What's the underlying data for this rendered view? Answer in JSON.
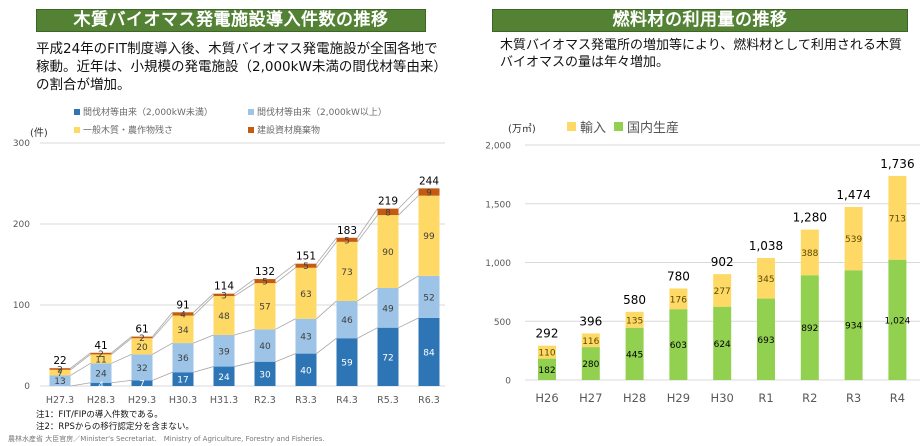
{
  "left": {
    "title": "木質バイオマス発電施設導入件数の推移",
    "description": "平成24年のFIT制度導入後、木質バイオマス発電施設が全国各地で稼動。近年は、小規模の発電施設（2,000kW未満の間伐材等由来）の割合が増加。",
    "unit": "(件)",
    "notes": [
      "注1：FIT/FIPの導入件数である。",
      "注2：RPSからの移行認定分を含まない。"
    ]
  },
  "right": {
    "title": "燃料材の利用量の推移",
    "description": "木質バイオマス発電所の増加等により、燃料材として利用される木質バイオマスの量は年々増加。",
    "unit": "(万㎥)"
  },
  "footer": "農林水産省 大臣官房／Minister's Secretariat.　Ministry of Agriculture, Forestry and Fisheries.",
  "chart_data": [
    {
      "type": "bar",
      "stacked": true,
      "title": "木質バイオマス発電施設導入件数の推移",
      "xlabel": "",
      "ylabel": "(件)",
      "ylim": [
        0,
        300
      ],
      "yticks": [
        0,
        100,
        200,
        300
      ],
      "grid": true,
      "legend_position": "top",
      "series_lines": true,
      "categories": [
        "H27.3",
        "H28.3",
        "H29.3",
        "H30.3",
        "H31.3",
        "R2.3",
        "R3.3",
        "R4.3",
        "R5.3",
        "R6.3"
      ],
      "series": [
        {
          "name": "間伐材等由来（2,000kW未満）",
          "color": "#2e75b6",
          "label_color": "#ffffff",
          "values": [
            0,
            4,
            7,
            17,
            24,
            30,
            40,
            59,
            72,
            84
          ]
        },
        {
          "name": "間伐材等由来（2,000kW以上）",
          "color": "#9dc3e6",
          "label_color": "#404040",
          "values": [
            13,
            24,
            32,
            36,
            39,
            40,
            43,
            46,
            49,
            52
          ]
        },
        {
          "name": "一般木質・農作物残さ",
          "color": "#ffd966",
          "label_color": "#404040",
          "values": [
            7,
            11,
            20,
            34,
            48,
            57,
            63,
            73,
            90,
            99
          ]
        },
        {
          "name": "建設資材廃棄物",
          "color": "#c55a11",
          "label_color": "#404040",
          "values": [
            2,
            2,
            2,
            4,
            3,
            5,
            5,
            5,
            8,
            9
          ]
        }
      ],
      "totals": [
        22,
        41,
        61,
        91,
        114,
        132,
        151,
        183,
        219,
        244
      ]
    },
    {
      "type": "bar",
      "stacked": true,
      "title": "燃料材の利用量の推移",
      "xlabel": "",
      "ylabel": "(万㎥)",
      "ylim": [
        0,
        2000
      ],
      "yticks": [
        0,
        500,
        1000,
        1500,
        2000
      ],
      "ytick_labels": [
        "0",
        "500",
        "1,000",
        "1,500",
        "2,000"
      ],
      "grid": true,
      "legend_position": "top",
      "categories": [
        "H26",
        "H27",
        "H28",
        "H29",
        "H30",
        "R1",
        "R2",
        "R3",
        "R4"
      ],
      "series": [
        {
          "name": "国内生産",
          "color": "#92d050",
          "label_color": "#000000",
          "values": [
            182,
            280,
            445,
            603,
            624,
            693,
            892,
            934,
            1024
          ],
          "labels": [
            "182",
            "280",
            "445",
            "603",
            "624",
            "693",
            "892",
            "934",
            "1,024"
          ]
        },
        {
          "name": "輸入",
          "color": "#ffd966",
          "label_color": "#5a4a00",
          "values": [
            110,
            116,
            135,
            176,
            277,
            345,
            388,
            539,
            713
          ],
          "labels": [
            "110",
            "116",
            "135",
            "176",
            "277",
            "345",
            "388",
            "539",
            "713"
          ]
        }
      ],
      "legend_order": [
        "輸入",
        "国内生産"
      ],
      "totals": [
        292,
        396,
        580,
        780,
        902,
        1038,
        1280,
        1474,
        1736
      ],
      "total_labels": [
        "292",
        "396",
        "580",
        "780",
        "902",
        "1,038",
        "1,280",
        "1,474",
        "1,736"
      ]
    }
  ]
}
